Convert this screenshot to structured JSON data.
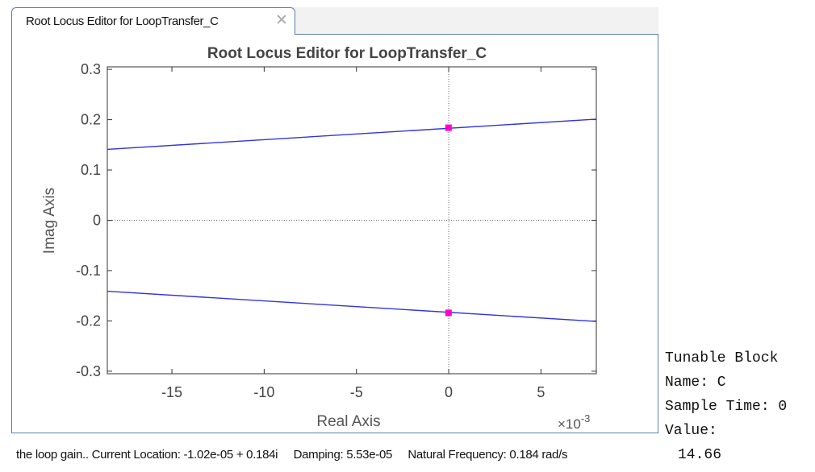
{
  "tab": {
    "label": "Root Locus Editor for LoopTransfer_C",
    "close_icon": "close-icon"
  },
  "chart_data": {
    "type": "line",
    "title": "Root Locus Editor for LoopTransfer_C",
    "xlabel": "Real Axis",
    "ylabel": "Imag Axis",
    "x_exponent_label": "×10",
    "x_exponent_power": "-3",
    "xlim": [
      -0.0185,
      0.008
    ],
    "ylim": [
      -0.305,
      0.305
    ],
    "x_ticks": [
      -0.015,
      -0.01,
      -0.005,
      0,
      0.005
    ],
    "x_tick_labels": [
      "-15",
      "-10",
      "-5",
      "0",
      "5"
    ],
    "y_ticks": [
      0.3,
      0.2,
      0.1,
      0,
      -0.1,
      -0.2,
      -0.3
    ],
    "y_tick_labels": [
      "0.3",
      "0.2",
      "0.1",
      "0",
      "-0.1",
      "-0.2",
      "-0.3"
    ],
    "grid": false,
    "series": [
      {
        "x": [
          -0.0185,
          0.008
        ],
        "y": [
          0.141,
          0.201
        ],
        "color": "#3333dd"
      },
      {
        "x": [
          -0.0185,
          0.008
        ],
        "y": [
          -0.141,
          -0.201
        ],
        "color": "#3333dd"
      }
    ],
    "closed_loop_poles": {
      "x": [
        -1.02e-05,
        -1.02e-05
      ],
      "y": [
        0.184,
        -0.184
      ],
      "color": "#ff00cc"
    },
    "axis_reference_lines": {
      "x": 0,
      "y": 0,
      "style": "dotted"
    }
  },
  "status": {
    "gain_text": "the loop gain.. Current Location: -1.02e-05 + 0.184i",
    "damping_text": "Damping: 5.53e-05",
    "frequency_text": "Natural Frequency: 0.184 rad/s"
  },
  "block_info": {
    "heading": "Tunable Block",
    "name": "Name: C",
    "sample_time": "Sample Time: 0",
    "value_label": "Value:",
    "value": "14.66"
  }
}
